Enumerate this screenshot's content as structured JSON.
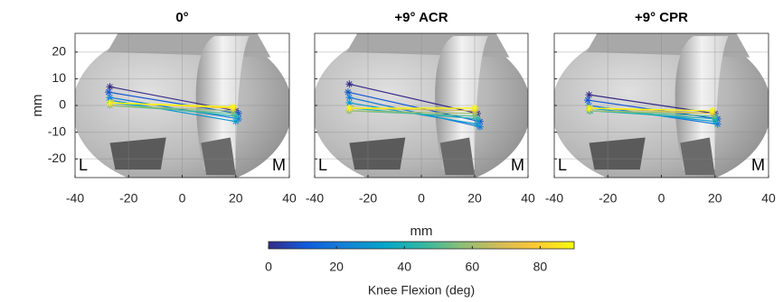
{
  "chart_data": [
    {
      "type": "segments",
      "title": "0°",
      "ylabel": "mm",
      "xlim": [
        -40,
        40
      ],
      "ylim": [
        -27,
        27
      ],
      "xticks": [
        -40,
        -20,
        0,
        20,
        40
      ],
      "yticks": [
        -20,
        -10,
        0,
        10,
        20
      ],
      "grid": true,
      "side_labels": [
        "L",
        "M"
      ],
      "flexion": [
        0,
        10,
        20,
        30,
        40,
        50,
        60,
        70,
        80,
        90
      ],
      "lateral_x": [
        -27,
        -27.5,
        -27,
        -27,
        -26.5,
        -27,
        -27,
        -26.5,
        -27,
        -27
      ],
      "lateral_y": [
        7,
        5,
        3,
        2,
        1,
        0,
        0,
        1,
        1,
        1
      ],
      "medial_x": [
        20,
        21,
        21,
        20,
        20,
        19,
        19,
        19,
        19,
        19
      ],
      "medial_y": [
        -2,
        -3,
        -5,
        -6,
        -4,
        -3,
        -2,
        -1,
        -1,
        -0.5
      ]
    },
    {
      "type": "segments",
      "title": "+9° ACR",
      "xlim": [
        -40,
        40
      ],
      "ylim": [
        -27,
        27
      ],
      "xticks": [
        -40,
        -20,
        0,
        20,
        40
      ],
      "yticks": [
        -20,
        -10,
        0,
        10,
        20
      ],
      "grid": true,
      "xlabel": "mm",
      "side_labels": [
        "L",
        "M"
      ],
      "flexion": [
        0,
        10,
        20,
        30,
        40,
        50,
        60,
        70,
        80,
        90
      ],
      "lateral_x": [
        -27,
        -27.5,
        -27,
        -27,
        -26.5,
        -27,
        -27,
        -26.5,
        -27,
        -27
      ],
      "lateral_y": [
        8,
        5,
        3,
        1,
        -1,
        -2,
        -2,
        -1,
        -1,
        -1
      ],
      "medial_x": [
        21,
        22,
        22,
        21,
        21,
        20,
        20,
        20,
        20,
        20
      ],
      "medial_y": [
        -3,
        -6,
        -8,
        -7,
        -5,
        -4,
        -3,
        -2,
        -1,
        -1
      ]
    },
    {
      "type": "segments",
      "title": "+9° CPR",
      "xlim": [
        -40,
        40
      ],
      "ylim": [
        -27,
        27
      ],
      "xticks": [
        -40,
        -20,
        0,
        20,
        40
      ],
      "yticks": [
        -20,
        -10,
        0,
        10,
        20
      ],
      "grid": true,
      "side_labels": [
        "L",
        "M"
      ],
      "flexion": [
        0,
        10,
        20,
        30,
        40,
        50,
        60,
        70,
        80,
        90
      ],
      "lateral_x": [
        -27,
        -27.5,
        -27,
        -27,
        -26.5,
        -27,
        -27,
        -26.5,
        -27,
        -27
      ],
      "lateral_y": [
        4,
        2,
        0,
        -1,
        -2,
        -2,
        -2,
        -1,
        -1,
        -1
      ],
      "medial_x": [
        20,
        21,
        21,
        20,
        20,
        20,
        19,
        19,
        19,
        19
      ],
      "medial_y": [
        -3,
        -5,
        -7,
        -6,
        -5,
        -4,
        -3,
        -3,
        -2,
        -2
      ]
    },
    {
      "type": "colorbar",
      "label": "Knee Flexion (deg)",
      "clim": [
        0,
        90
      ],
      "ticks": [
        0,
        20,
        40,
        60,
        80
      ],
      "colormap": [
        "#352a87",
        "#0f5cdd",
        "#1481d6",
        "#06a4ca",
        "#2eb7a4",
        "#87bf77",
        "#d1bb59",
        "#fec832",
        "#f9fb0e"
      ]
    }
  ]
}
